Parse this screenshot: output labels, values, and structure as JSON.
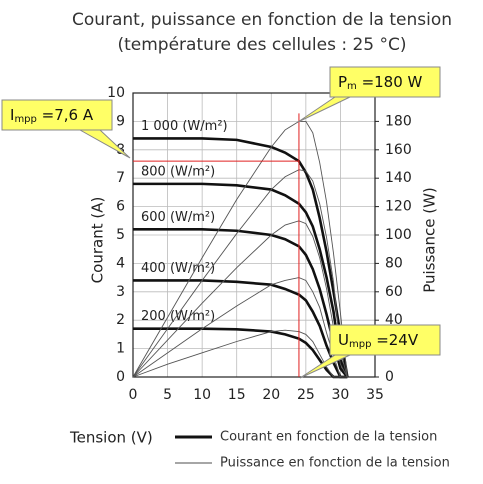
{
  "chart_data": {
    "type": "line",
    "title": "Courant, puissance en fonction de la tension",
    "subtitle": "(température des cellules : 25 °C)",
    "x_label": "Tension (V)",
    "y_label": "Courant (A)",
    "y2_label": "Puissance (W)",
    "x": [
      0,
      5,
      10,
      15,
      20,
      22,
      24,
      25,
      26,
      27,
      28,
      29,
      30,
      31
    ],
    "xlim": [
      0,
      35
    ],
    "xticks": [
      0,
      5,
      10,
      15,
      20,
      25,
      30,
      35
    ],
    "ylim": [
      0,
      10
    ],
    "yticks": [
      0,
      1,
      2,
      3,
      4,
      5,
      6,
      7,
      8,
      9,
      10
    ],
    "y2lim": [
      0,
      200
    ],
    "y2ticks": [
      0,
      20,
      40,
      60,
      80,
      100,
      120,
      140,
      160,
      180
    ],
    "grid": true,
    "series": [
      {
        "name": "1 000 (W/m²)",
        "color": "#111111",
        "values": [
          8.4,
          8.4,
          8.4,
          8.35,
          8.1,
          7.9,
          7.6,
          7.2,
          6.6,
          5.6,
          4.4,
          3.0,
          1.5,
          0
        ]
      },
      {
        "name": "800 (W/m²)",
        "color": "#111111",
        "values": [
          6.8,
          6.8,
          6.8,
          6.75,
          6.6,
          6.4,
          6.1,
          5.8,
          5.3,
          4.5,
          3.5,
          2.3,
          0.6,
          0
        ]
      },
      {
        "name": "600 (W/m²)",
        "color": "#111111",
        "values": [
          5.2,
          5.2,
          5.2,
          5.15,
          5.0,
          4.85,
          4.6,
          4.3,
          3.8,
          3.1,
          2.2,
          1.2,
          0.3,
          0
        ]
      },
      {
        "name": "400 (W/m²)",
        "color": "#111111",
        "values": [
          3.4,
          3.4,
          3.4,
          3.35,
          3.25,
          3.1,
          2.9,
          2.7,
          2.3,
          1.8,
          1.1,
          0.5,
          0,
          0
        ]
      },
      {
        "name": "200 (W/m²)",
        "color": "#111111",
        "values": [
          1.7,
          1.7,
          1.7,
          1.68,
          1.6,
          1.5,
          1.35,
          1.2,
          0.95,
          0.6,
          0.25,
          0,
          0,
          0
        ]
      },
      {
        "axis": "y2",
        "color": "#555555",
        "values": [
          0,
          42,
          84,
          125,
          162,
          174,
          180,
          180,
          172,
          151,
          123,
          87,
          45,
          0
        ]
      },
      {
        "axis": "y2",
        "color": "#555555",
        "values": [
          0,
          34,
          68,
          101,
          132,
          141,
          146,
          145,
          138,
          122,
          98,
          67,
          18,
          0
        ]
      },
      {
        "axis": "y2",
        "color": "#555555",
        "values": [
          0,
          26,
          52,
          77,
          100,
          107,
          110,
          108,
          99,
          84,
          62,
          35,
          9,
          0
        ]
      },
      {
        "axis": "y2",
        "color": "#555555",
        "values": [
          0,
          17,
          34,
          50,
          65,
          68,
          70,
          68,
          60,
          49,
          31,
          15,
          0,
          0
        ]
      },
      {
        "axis": "y2",
        "color": "#555555",
        "values": [
          0,
          9,
          17,
          25,
          32,
          33,
          32,
          30,
          25,
          16,
          7,
          0,
          0,
          0
        ]
      }
    ],
    "legend": [
      {
        "label": "Courant en fonction de la tension",
        "style": "thick"
      },
      {
        "label": "Puissance en fonction de la tension",
        "style": "thin"
      }
    ],
    "mpp": {
      "u": 24,
      "i": 7.6,
      "p": 180,
      "color": "#e02020"
    },
    "callouts": {
      "pm": {
        "main": "P",
        "sub": "m",
        "rest": " =180 W"
      },
      "impp": {
        "main": "I",
        "sub": "mpp",
        "rest": " =7,6 A"
      },
      "umpp": {
        "main": "U",
        "sub": "mpp",
        "rest": " =24V"
      }
    }
  }
}
